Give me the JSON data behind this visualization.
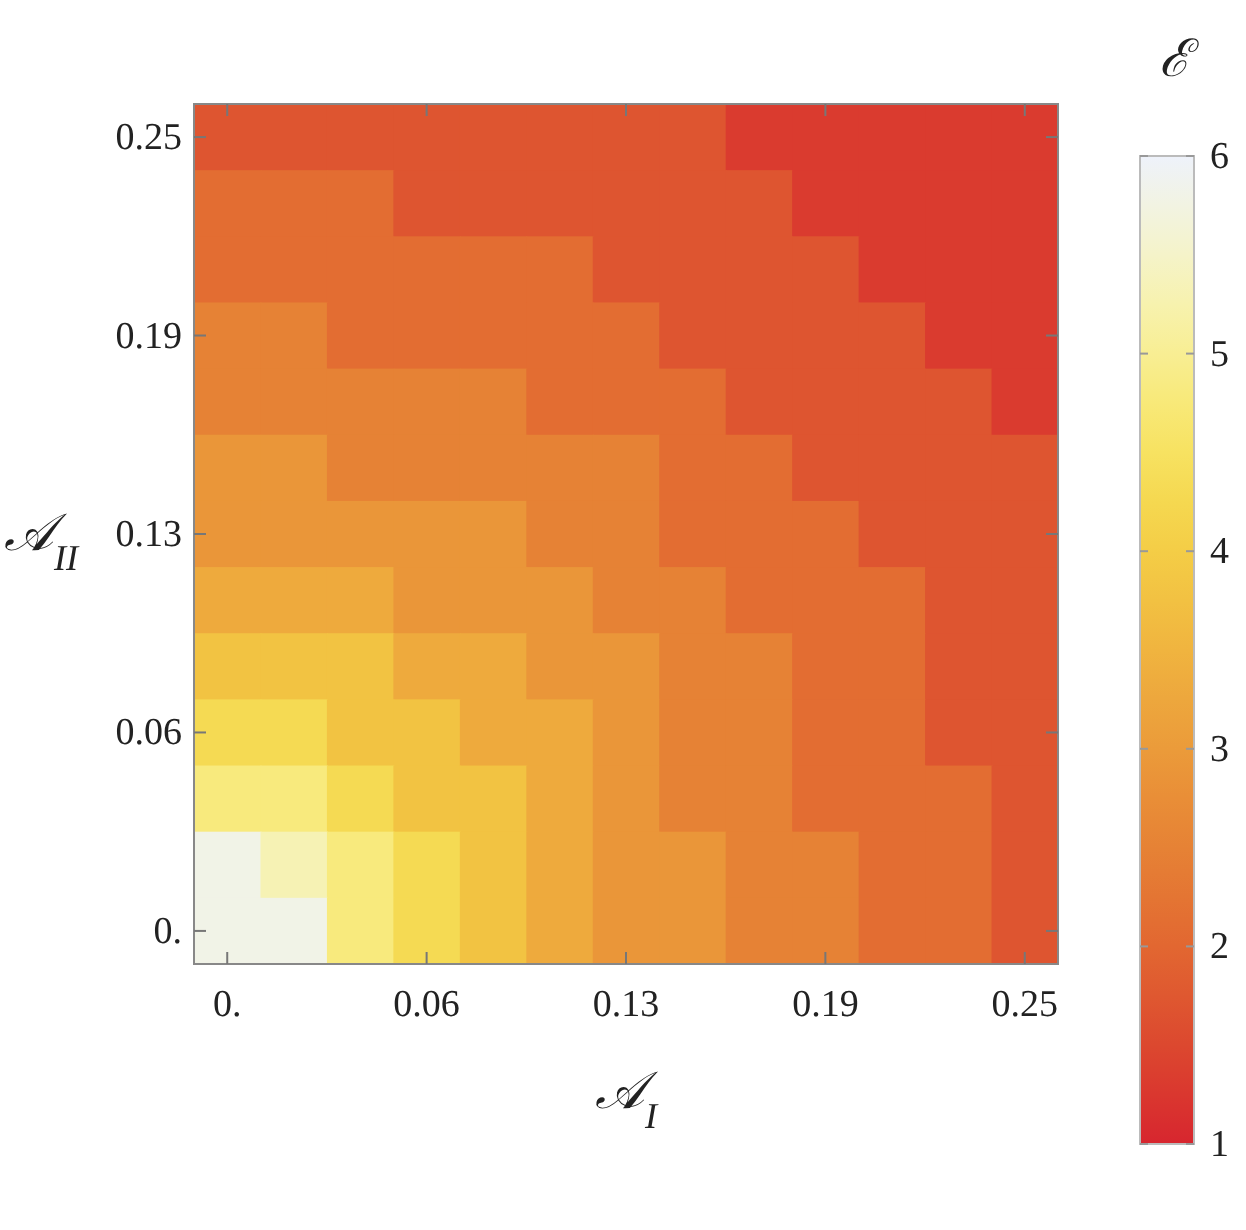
{
  "chart_data": {
    "type": "heatmap",
    "xlabel": "𝒜$_{I}$",
    "ylabel": "𝒜$_{II}$",
    "clabel": "ℰ",
    "categories": [
      "0.",
      null,
      null,
      "0.06",
      null,
      null,
      "0.13",
      null,
      null,
      "0.19",
      null,
      null,
      "0.25"
    ],
    "y_categories": [
      "0.25",
      null,
      null,
      "0.19",
      null,
      null,
      "0.13",
      null,
      null,
      "0.06",
      null,
      null,
      "0."
    ],
    "clim": [
      1,
      6
    ],
    "cticks": [
      1,
      2,
      3,
      4,
      5,
      6
    ],
    "cells": [
      [
        1.7,
        1.7,
        1.7,
        1.7,
        1.7,
        1.7,
        1.7,
        1.7,
        1.3,
        1.3,
        1.3,
        1.3,
        1.3
      ],
      [
        2.1,
        2.1,
        2.1,
        1.7,
        1.7,
        1.7,
        1.7,
        1.7,
        1.7,
        1.3,
        1.3,
        1.3,
        1.3
      ],
      [
        2.1,
        2.1,
        2.1,
        2.1,
        2.1,
        2.1,
        1.7,
        1.7,
        1.7,
        1.7,
        1.3,
        1.3,
        1.3
      ],
      [
        2.5,
        2.5,
        2.1,
        2.1,
        2.1,
        2.1,
        2.1,
        1.7,
        1.7,
        1.7,
        1.7,
        1.3,
        1.3
      ],
      [
        2.5,
        2.5,
        2.5,
        2.5,
        2.5,
        2.1,
        2.1,
        2.1,
        1.7,
        1.7,
        1.7,
        1.7,
        1.3
      ],
      [
        2.9,
        2.9,
        2.5,
        2.5,
        2.5,
        2.5,
        2.5,
        2.1,
        2.1,
        1.7,
        1.7,
        1.7,
        1.7
      ],
      [
        2.9,
        2.9,
        2.9,
        2.9,
        2.9,
        2.5,
        2.5,
        2.1,
        2.1,
        2.1,
        1.7,
        1.7,
        1.7
      ],
      [
        3.3,
        3.3,
        3.3,
        2.9,
        2.9,
        2.9,
        2.5,
        2.5,
        2.1,
        2.1,
        2.1,
        1.7,
        1.7
      ],
      [
        3.8,
        3.8,
        3.8,
        3.3,
        3.3,
        2.9,
        2.9,
        2.5,
        2.5,
        2.1,
        2.1,
        1.7,
        1.7
      ],
      [
        4.3,
        4.3,
        3.8,
        3.8,
        3.3,
        3.3,
        2.9,
        2.5,
        2.5,
        2.1,
        2.1,
        1.7,
        1.7
      ],
      [
        4.8,
        4.8,
        4.3,
        3.8,
        3.8,
        3.3,
        2.9,
        2.5,
        2.5,
        2.1,
        2.1,
        2.1,
        1.7
      ],
      [
        5.8,
        5.3,
        4.8,
        4.3,
        3.8,
        3.3,
        2.9,
        2.9,
        2.5,
        2.5,
        2.1,
        2.1,
        1.7
      ],
      [
        5.8,
        5.8,
        4.8,
        4.3,
        3.8,
        3.3,
        2.9,
        2.9,
        2.5,
        2.5,
        2.1,
        2.1,
        1.7
      ]
    ]
  }
}
